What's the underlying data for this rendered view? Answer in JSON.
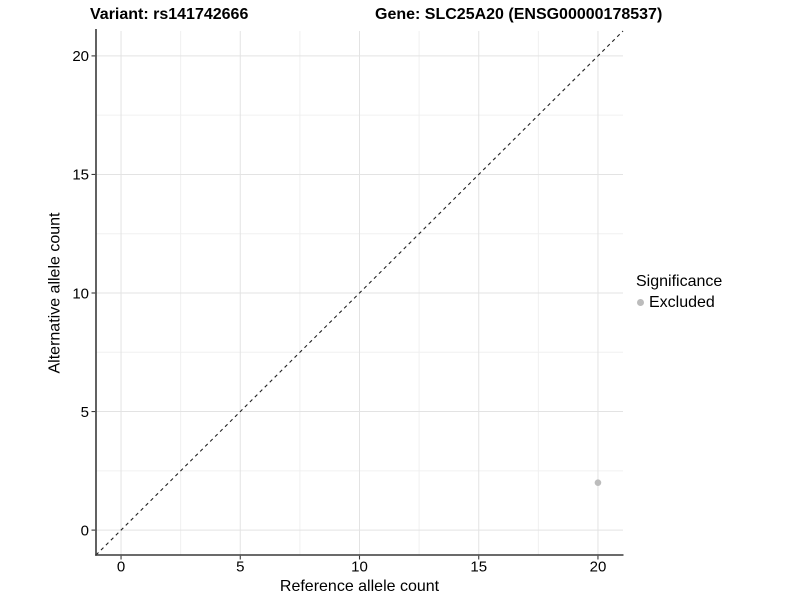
{
  "chart_data": {
    "type": "scatter",
    "title_left": "Variant: rs141742666",
    "title_right": "Gene: SLC25A20 (ENSG00000178537)",
    "xlabel": "Reference allele count",
    "ylabel": "Alternative allele count",
    "xlim": [
      -1.05,
      21.05
    ],
    "ylim": [
      -1.05,
      21.05
    ],
    "xticks": [
      0,
      5,
      10,
      15,
      20
    ],
    "yticks": [
      0,
      5,
      10,
      15,
      20
    ],
    "minor_gridline_step": 2.5,
    "grid": "major+minor",
    "identity_line": {
      "type": "abline",
      "slope": 1,
      "intercept": 0,
      "style": "dashed"
    },
    "points": [
      {
        "x": 20,
        "y": 2,
        "significance": "Excluded"
      }
    ],
    "legend": {
      "title": "Significance",
      "position": "right",
      "entries": [
        {
          "label": "Excluded",
          "marker": "circle",
          "color": "#bcbcbc"
        }
      ]
    }
  },
  "colors": {
    "background": "#ffffff",
    "text": "#000000",
    "axis": "#3a3a3a",
    "grid_major": "#e3e3e3",
    "grid_minor": "#f0f0f0",
    "identity_line": "#222222",
    "point": "#bcbcbc"
  }
}
